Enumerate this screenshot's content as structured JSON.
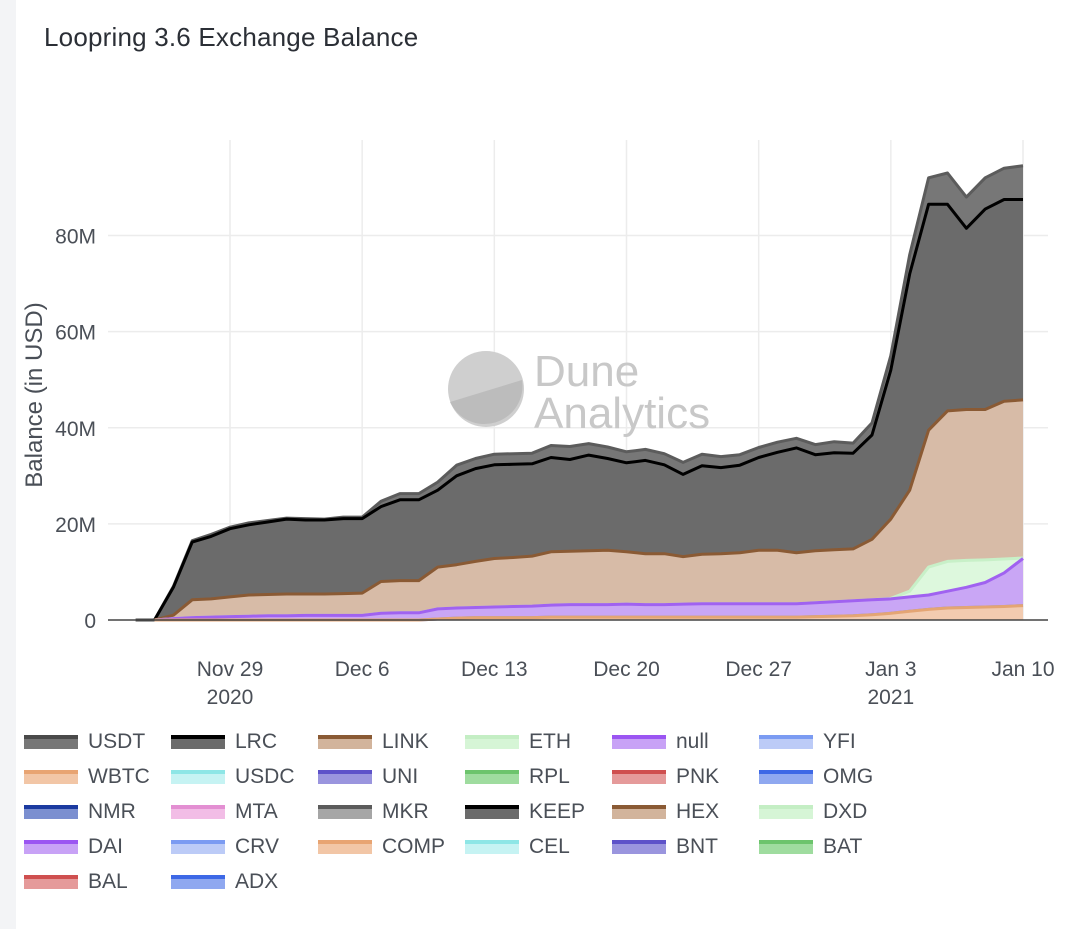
{
  "title": "Loopring 3.6 Exchange Balance",
  "chart_data": {
    "type": "area",
    "title": "Loopring 3.6 Exchange Balance",
    "xlabel": "",
    "ylabel": "Balance (in USD)",
    "ylim": [
      0,
      98000000
    ],
    "xlim": [
      "2020-11-23",
      "2021-01-12"
    ],
    "y_ticks": [
      {
        "value": 0,
        "label": "0"
      },
      {
        "value": 20000000,
        "label": "20M"
      },
      {
        "value": 40000000,
        "label": "40M"
      },
      {
        "value": 60000000,
        "label": "60M"
      },
      {
        "value": 80000000,
        "label": "80M"
      }
    ],
    "x_ticks": [
      {
        "date": "2020-11-29",
        "label": "Nov 29",
        "sublabel": "2020"
      },
      {
        "date": "2020-12-06",
        "label": "Dec 6",
        "sublabel": ""
      },
      {
        "date": "2020-12-13",
        "label": "Dec 13",
        "sublabel": ""
      },
      {
        "date": "2020-12-20",
        "label": "Dec 20",
        "sublabel": ""
      },
      {
        "date": "2020-12-27",
        "label": "Dec 27",
        "sublabel": ""
      },
      {
        "date": "2021-01-03",
        "label": "Jan 3",
        "sublabel": "2021"
      },
      {
        "date": "2021-01-10",
        "label": "Jan 10",
        "sublabel": ""
      }
    ],
    "grid": true,
    "stacked": true,
    "legend_position": "bottom",
    "watermark": "Dune Analytics",
    "x": [
      "2020-11-25",
      "2020-11-26",
      "2020-11-27",
      "2020-11-28",
      "2020-11-29",
      "2020-11-30",
      "2020-12-01",
      "2020-12-02",
      "2020-12-03",
      "2020-12-04",
      "2020-12-05",
      "2020-12-06",
      "2020-12-07",
      "2020-12-08",
      "2020-12-09",
      "2020-12-10",
      "2020-12-11",
      "2020-12-12",
      "2020-12-13",
      "2020-12-14",
      "2020-12-15",
      "2020-12-16",
      "2020-12-17",
      "2020-12-18",
      "2020-12-19",
      "2020-12-20",
      "2020-12-21",
      "2020-12-22",
      "2020-12-23",
      "2020-12-24",
      "2020-12-25",
      "2020-12-26",
      "2020-12-27",
      "2020-12-28",
      "2020-12-29",
      "2020-12-30",
      "2020-12-31",
      "2021-01-01",
      "2021-01-02",
      "2021-01-03",
      "2021-01-04",
      "2021-01-05",
      "2021-01-06",
      "2021-01-07",
      "2021-01-08",
      "2021-01-09",
      "2021-01-10"
    ],
    "series": [
      {
        "name": "USDT",
        "color": "#5c5c5c",
        "fill": "#777777",
        "cumulative": [
          0,
          7000000,
          16500000,
          17800000,
          19300000,
          20200000,
          20700000,
          21200000,
          21100000,
          21000000,
          21400000,
          21400000,
          24700000,
          26300000,
          26300000,
          28700000,
          32200000,
          33600000,
          34500000,
          34600000,
          34700000,
          36300000,
          36100000,
          36700000,
          36000000,
          35000000,
          35500000,
          34600000,
          32800000,
          34500000,
          34000000,
          34400000,
          35900000,
          37000000,
          37800000,
          36500000,
          37100000,
          36800000,
          41000000,
          55000000,
          76000000,
          92000000,
          93000000,
          88000000,
          92000000,
          94000000,
          94500000
        ]
      },
      {
        "name": "LRC",
        "color": "#000000",
        "fill": "#6b6b6b",
        "cumulative": [
          0,
          6800000,
          16200000,
          17400000,
          19000000,
          19800000,
          20400000,
          21000000,
          20800000,
          20800000,
          21100000,
          21100000,
          23600000,
          25000000,
          25000000,
          27000000,
          30000000,
          31500000,
          32300000,
          32400000,
          32500000,
          33800000,
          33400000,
          34300000,
          33600000,
          32700000,
          33200000,
          32300000,
          30300000,
          32100000,
          31700000,
          32200000,
          33800000,
          34900000,
          35800000,
          34400000,
          34800000,
          34700000,
          38500000,
          52000000,
          72000000,
          86500000,
          86500000,
          81500000,
          85500000,
          87500000,
          87500000
        ]
      },
      {
        "name": "LINK",
        "color": "#8a5a34",
        "fill": "#d7bba7",
        "cumulative": [
          0,
          1000000,
          4200000,
          4400000,
          4800000,
          5200000,
          5300000,
          5400000,
          5400000,
          5400000,
          5500000,
          5600000,
          8000000,
          8200000,
          8200000,
          11000000,
          11500000,
          12200000,
          12800000,
          13000000,
          13300000,
          14200000,
          14300000,
          14400000,
          14500000,
          14200000,
          13800000,
          13800000,
          13200000,
          13700000,
          13800000,
          14000000,
          14500000,
          14500000,
          14000000,
          14400000,
          14600000,
          14800000,
          16800000,
          21000000,
          27000000,
          39500000,
          43500000,
          43800000,
          43800000,
          45500000,
          45800000
        ]
      },
      {
        "name": "ETH",
        "color": "#c8f0c8",
        "fill": "#ddf8dd",
        "cumulative": [
          0,
          300000,
          500000,
          600000,
          700000,
          800000,
          900000,
          900000,
          950000,
          950000,
          950000,
          950000,
          1400000,
          1500000,
          1500000,
          2300000,
          2500000,
          2600000,
          2700000,
          2800000,
          2900000,
          3100000,
          3200000,
          3200000,
          3200000,
          3300000,
          3200000,
          3200000,
          3300000,
          3400000,
          3400000,
          3400000,
          3400000,
          3400000,
          3400000,
          3600000,
          3800000,
          4000000,
          4200000,
          4500000,
          6000000,
          11000000,
          12200000,
          12400000,
          12500000,
          12700000,
          12900000
        ]
      },
      {
        "name": "null",
        "color": "#a062f0",
        "fill": "#c9a6f5",
        "cumulative": [
          0,
          300000,
          500000,
          600000,
          700000,
          800000,
          900000,
          900000,
          950000,
          950000,
          950000,
          950000,
          1400000,
          1500000,
          1500000,
          2300000,
          2500000,
          2600000,
          2700000,
          2800000,
          2900000,
          3100000,
          3200000,
          3200000,
          3200000,
          3300000,
          3200000,
          3200000,
          3300000,
          3400000,
          3400000,
          3400000,
          3400000,
          3400000,
          3400000,
          3600000,
          3800000,
          4000000,
          4200000,
          4400000,
          4800000,
          5200000,
          6000000,
          6800000,
          7800000,
          9800000,
          12800000
        ]
      },
      {
        "name": "YFI",
        "color": "#6f8ef0",
        "fill": "#bccbf7",
        "cumulative": [
          0,
          0,
          0,
          0,
          0,
          0,
          0,
          0,
          0,
          0,
          0,
          0,
          0,
          0,
          0,
          200000,
          400000,
          500000,
          500000,
          500000,
          500000,
          600000,
          600000,
          600000,
          600000,
          600000,
          600000,
          600000,
          600000,
          600000,
          600000,
          600000,
          600000,
          600000,
          600000,
          700000,
          800000,
          900000,
          1100000,
          1400000,
          1800000,
          2200000,
          2500000,
          2600000,
          2700000,
          2800000,
          3000000
        ]
      },
      {
        "name": "WBTC",
        "color": "#e4a574",
        "fill": "#f2cbb0",
        "cumulative": [
          0,
          0,
          0,
          0,
          0,
          0,
          0,
          0,
          0,
          0,
          0,
          0,
          0,
          0,
          0,
          200000,
          400000,
          500000,
          500000,
          500000,
          500000,
          600000,
          600000,
          600000,
          600000,
          600000,
          600000,
          600000,
          600000,
          600000,
          600000,
          600000,
          600000,
          600000,
          600000,
          700000,
          800000,
          900000,
          1100000,
          1400000,
          1800000,
          2200000,
          2500000,
          2600000,
          2700000,
          2800000,
          3000000
        ]
      }
    ],
    "legend": [
      {
        "name": "USDT",
        "fill": "#777777",
        "border": "#4a4a4a"
      },
      {
        "name": "LRC",
        "fill": "#6b6b6b",
        "border": "#000000"
      },
      {
        "name": "LINK",
        "fill": "#d2b49c",
        "border": "#8a5a34"
      },
      {
        "name": "ETH",
        "fill": "#d6f5d6",
        "border": "#c4eec4"
      },
      {
        "name": "null",
        "fill": "#c8a2f6",
        "border": "#9b55f2"
      },
      {
        "name": "YFI",
        "fill": "#bccbf7",
        "border": "#7b9bf2"
      },
      {
        "name": "WBTC",
        "fill": "#f2c6a6",
        "border": "#e8a472"
      },
      {
        "name": "USDC",
        "fill": "#c6f3f3",
        "border": "#8ee6e6"
      },
      {
        "name": "UNI",
        "fill": "#9a95de",
        "border": "#5d52c9"
      },
      {
        "name": "RPL",
        "fill": "#9fdc9f",
        "border": "#6cc46c"
      },
      {
        "name": "PNK",
        "fill": "#e59a9a",
        "border": "#cf4f4f"
      },
      {
        "name": "OMG",
        "fill": "#8fa8f0",
        "border": "#3d68e6"
      },
      {
        "name": "NMR",
        "fill": "#7b8fd0",
        "border": "#1b3aa0"
      },
      {
        "name": "MTA",
        "fill": "#f2bde6",
        "border": "#e38fd2"
      },
      {
        "name": "MKR",
        "fill": "#a6a6a6",
        "border": "#5b5b5b"
      },
      {
        "name": "KEEP",
        "fill": "#6b6b6b",
        "border": "#000000"
      },
      {
        "name": "HEX",
        "fill": "#d2b49c",
        "border": "#8a5a34"
      },
      {
        "name": "DXD",
        "fill": "#d6f5d6",
        "border": "#c4eec4"
      },
      {
        "name": "DAI",
        "fill": "#c8a2f6",
        "border": "#9b55f2"
      },
      {
        "name": "CRV",
        "fill": "#bccbf7",
        "border": "#7b9bf2"
      },
      {
        "name": "COMP",
        "fill": "#f2c6a6",
        "border": "#e8a472"
      },
      {
        "name": "CEL",
        "fill": "#c6f3f3",
        "border": "#8ee6e6"
      },
      {
        "name": "BNT",
        "fill": "#9a95de",
        "border": "#5d52c9"
      },
      {
        "name": "BAT",
        "fill": "#9fdc9f",
        "border": "#6cc46c"
      },
      {
        "name": "BAL",
        "fill": "#e59a9a",
        "border": "#cf4f4f"
      },
      {
        "name": "ADX",
        "fill": "#8fa8f0",
        "border": "#3d68e6"
      }
    ]
  }
}
